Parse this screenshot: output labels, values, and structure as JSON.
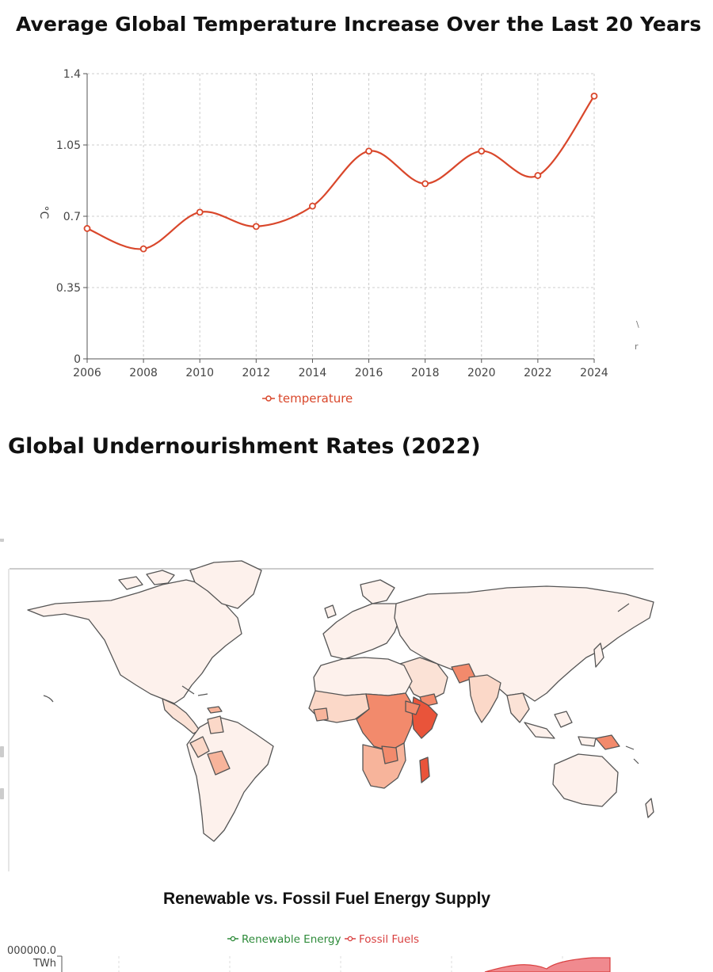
{
  "charts": {
    "temperature": {
      "title": "Average Global Temperature Increase Over the Last 20 Years"
    },
    "undernourishment": {
      "title": "Global Undernourishment Rates (2022)"
    },
    "energy": {
      "title": "Renewable vs. Fossil Fuel Energy Supply",
      "y_tick_partial": "000000.0",
      "y_unit": "TWh"
    }
  },
  "chart_data": [
    {
      "type": "line",
      "title": "Average Global Temperature Increase Over the Last 20 Years",
      "xlabel": "",
      "ylabel": "°C",
      "x": [
        2006,
        2008,
        2010,
        2012,
        2014,
        2016,
        2018,
        2020,
        2022,
        2024
      ],
      "series": [
        {
          "name": "temperature",
          "color": "#d9472b",
          "values": [
            0.64,
            0.54,
            0.72,
            0.65,
            0.75,
            1.02,
            0.86,
            1.02,
            0.9,
            1.29
          ]
        }
      ],
      "ylim": [
        0,
        1.4
      ],
      "yticks": [
        "0",
        "0.35",
        "0.7",
        "1.05",
        "1.4"
      ],
      "xticks": [
        "2006",
        "2008",
        "2010",
        "2012",
        "2014",
        "2016",
        "2018",
        "2020",
        "2022",
        "2024"
      ],
      "grid": true,
      "legend": "bottom-center"
    },
    {
      "type": "heatmap",
      "subtype": "choropleth",
      "title": "Global Undernourishment Rates (2022)",
      "color_scale": [
        "#fdf1ec",
        "#fbd8c8",
        "#f7b49b",
        "#f28a6c",
        "#e9543a"
      ],
      "highlighted_regions": [
        "Sub-Saharan Africa",
        "Horn of Africa",
        "Madagascar",
        "Yemen",
        "Afghanistan",
        "Haiti",
        "Papua New Guinea"
      ]
    },
    {
      "type": "area",
      "title": "Renewable vs. Fossil Fuel Energy Supply",
      "ylabel": "TWh",
      "series": [
        {
          "name": "Renewable Energy",
          "color": "#2e8b3a"
        },
        {
          "name": "Fossil Fuels",
          "color": "#d94040"
        }
      ],
      "legend": "top-center"
    }
  ]
}
